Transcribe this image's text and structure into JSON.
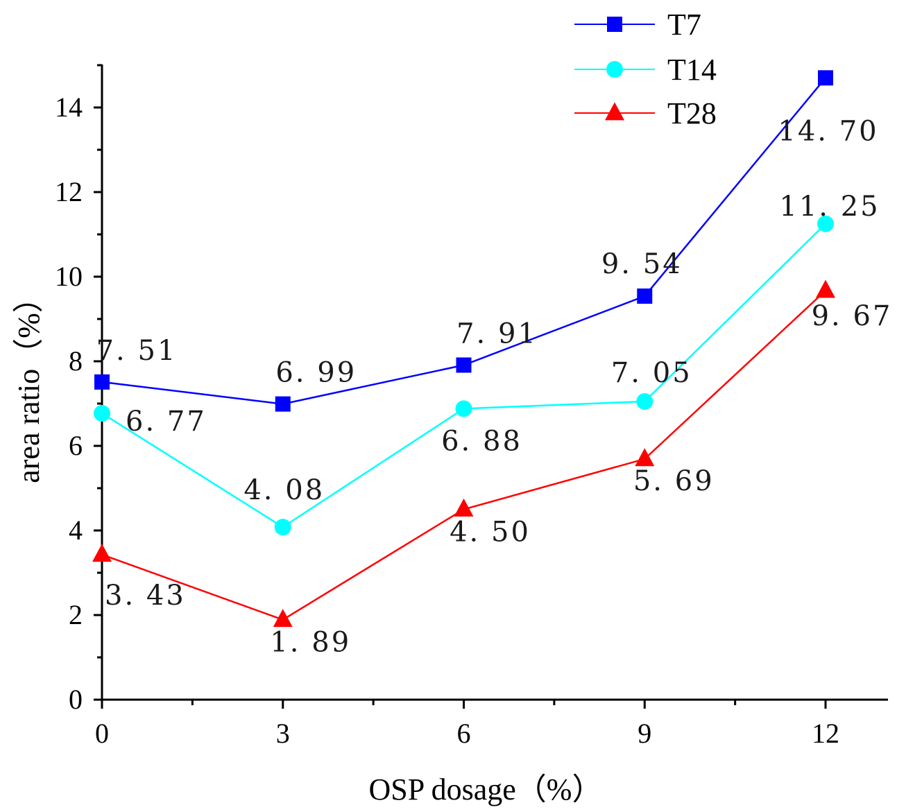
{
  "chart_data": {
    "type": "line",
    "title": "",
    "xlabel": "OSP dosage（%）",
    "ylabel": "area ratio（%）",
    "x": [
      0,
      3,
      6,
      9,
      12
    ],
    "xlim": [
      0,
      13
    ],
    "ylim": [
      0,
      15
    ],
    "xticks": [
      "0",
      "3",
      "6",
      "9",
      "12"
    ],
    "yticks": [
      "0",
      "2",
      "4",
      "6",
      "8",
      "10",
      "12",
      "14"
    ],
    "grid": false,
    "legend_position": "top-right",
    "series": [
      {
        "name": "T7",
        "marker": "square",
        "color": "#0000ff",
        "values": [
          7.51,
          6.99,
          7.91,
          9.54,
          14.7
        ],
        "labels": [
          "7. 51",
          "6. 99",
          "7. 91",
          "9. 54",
          "14. 70"
        ]
      },
      {
        "name": "T14",
        "marker": "circle",
        "color": "#00ffff",
        "values": [
          6.77,
          4.08,
          6.88,
          7.05,
          11.25
        ],
        "labels": [
          "6. 77",
          "4. 08",
          "6. 88",
          "7. 05",
          "11. 25"
        ]
      },
      {
        "name": "T28",
        "marker": "triangle",
        "color": "#ff0000",
        "values": [
          3.43,
          1.89,
          4.5,
          5.69,
          9.67
        ],
        "labels": [
          "3. 43",
          "1. 89",
          "4. 50",
          "5. 69",
          "9. 67"
        ]
      }
    ]
  }
}
